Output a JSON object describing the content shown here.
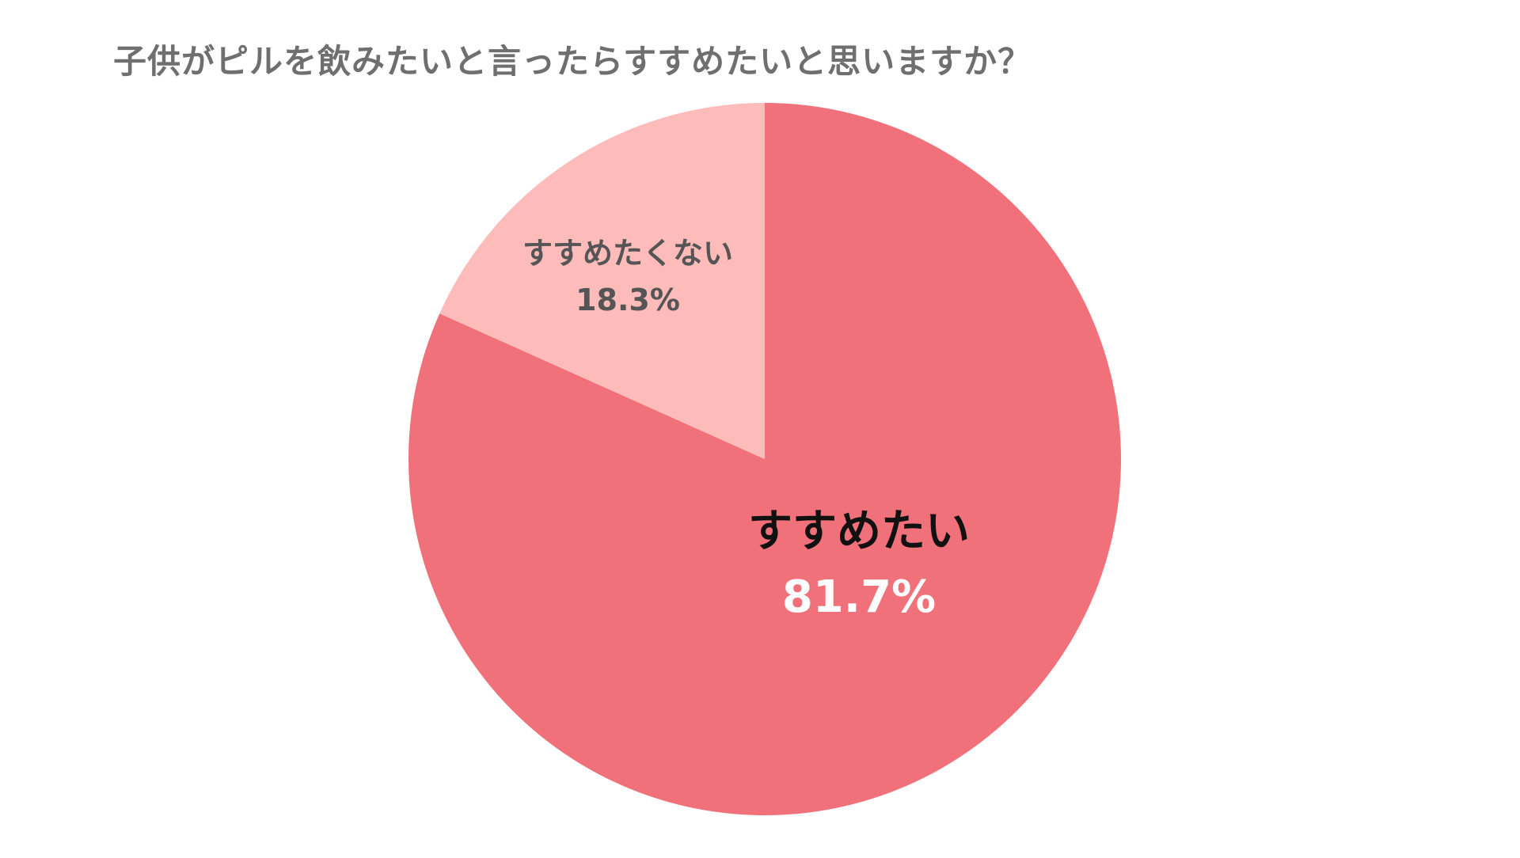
{
  "chart_data": {
    "type": "pie",
    "title": "子供がピルを飲みたいと言ったらすすめたいと思いますか？",
    "slices": [
      {
        "label": "すすめたい",
        "value": 81.7,
        "value_label": "81.7%",
        "color": "#f07179",
        "label_color": "#111111",
        "value_color": "#ffffff"
      },
      {
        "label": "すすめたくない",
        "value": 18.3,
        "value_label": "18.3%",
        "color": "#fdbcba",
        "label_color": "#555555",
        "value_color": "#555555"
      }
    ],
    "start_angle": "12 o'clock",
    "direction": "clockwise"
  }
}
